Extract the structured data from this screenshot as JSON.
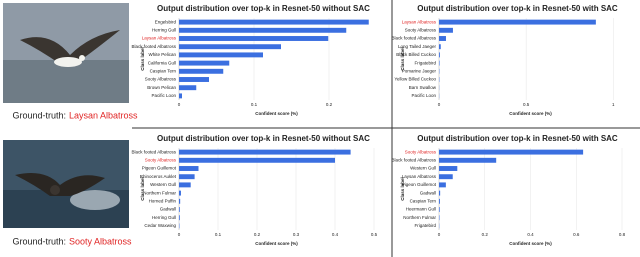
{
  "images": [
    {
      "caption_prefix": "Ground-truth:",
      "label": "Laysan Albatross"
    },
    {
      "caption_prefix": "Ground-truth:",
      "label": "Sooty Albatross"
    }
  ],
  "chart_data": [
    {
      "type": "bar",
      "orientation": "horizontal",
      "title": "Output distribution over top-k in Resnet-50 without SAC",
      "xlabel": "Confident score (%)",
      "ylabel": "Class label",
      "categories": [
        "Engelsbird",
        "Herring Gull",
        "Laysan Albatross",
        "Black footed Albatross",
        "White Pelican",
        "California Gull",
        "Caspian Tern",
        "Sooty Albatross",
        "Brown Pelican",
        "Pacific Loon"
      ],
      "values": [
        0.253,
        0.223,
        0.199,
        0.136,
        0.112,
        0.067,
        0.059,
        0.04,
        0.023,
        0.004
      ],
      "xlim": [
        0,
        0.26
      ],
      "xticks": [
        0,
        0.1,
        0.2
      ],
      "color": "#3b6fe0",
      "highlight_index": 2,
      "highlight_color": "#e02424"
    },
    {
      "type": "bar",
      "orientation": "horizontal",
      "title": "Output distribution over top-k in Resnet-50 with SAC",
      "xlabel": "Confident score (%)",
      "ylabel": "Class label",
      "categories": [
        "Laysan Albatross",
        "Sooty Albatross",
        "Black footed Albatross",
        "Long Tailed Jaeger",
        "Black Billed Cuckoo",
        "Frigatebird",
        "Pomarine Jaeger",
        "Yellow Billed Cuckoo",
        "Barn Swallow",
        "Pacific Loon"
      ],
      "values": [
        0.9,
        0.08,
        0.04,
        0.01,
        0.005,
        0.003,
        0.002,
        0.002,
        0.001,
        0.001
      ],
      "xlim": [
        0,
        1.05
      ],
      "xticks": [
        0,
        0.5,
        1
      ],
      "color": "#3b6fe0",
      "highlight_index": 0,
      "highlight_color": "#e02424"
    },
    {
      "type": "bar",
      "orientation": "horizontal",
      "title": "Output distribution over top-k in Resnet-50 without SAC",
      "xlabel": "Confident score (%)",
      "ylabel": "Class label",
      "categories": [
        "Black footed Albatross",
        "Sooty Albatross",
        "Pigeon Guillemot",
        "Rhinoceros Auklet",
        "Western Gull",
        "Northern Fulmar",
        "Horned Puffin",
        "Gadwall",
        "Herring Gull",
        "Cedar Waxwing"
      ],
      "values": [
        0.44,
        0.4,
        0.05,
        0.04,
        0.03,
        0.005,
        0.003,
        0.002,
        0.002,
        0.001
      ],
      "xlim": [
        0,
        0.5
      ],
      "xticks": [
        0,
        0.1,
        0.2,
        0.3,
        0.4,
        0.5
      ],
      "color": "#3b6fe0",
      "highlight_index": 1,
      "highlight_color": "#e02424"
    },
    {
      "type": "bar",
      "orientation": "horizontal",
      "title": "Output distribution over top-k in Resnet-50 with SAC",
      "xlabel": "Confident score (%)",
      "ylabel": "Class label",
      "categories": [
        "Sooty Albatross",
        "Black footed Albatross",
        "Western Gull",
        "Laysan Albatross",
        "Pigeon Guillemot",
        "Gadwall",
        "Caspian Tern",
        "Heermann Gull",
        "Northern Fulmar",
        "Frigatebird"
      ],
      "values": [
        0.63,
        0.25,
        0.08,
        0.06,
        0.03,
        0.005,
        0.004,
        0.003,
        0.002,
        0.001
      ],
      "xlim": [
        0,
        0.8
      ],
      "xticks": [
        0,
        0.2,
        0.4,
        0.6,
        0.8
      ],
      "color": "#3b6fe0",
      "highlight_index": 0,
      "highlight_color": "#e02424"
    }
  ]
}
